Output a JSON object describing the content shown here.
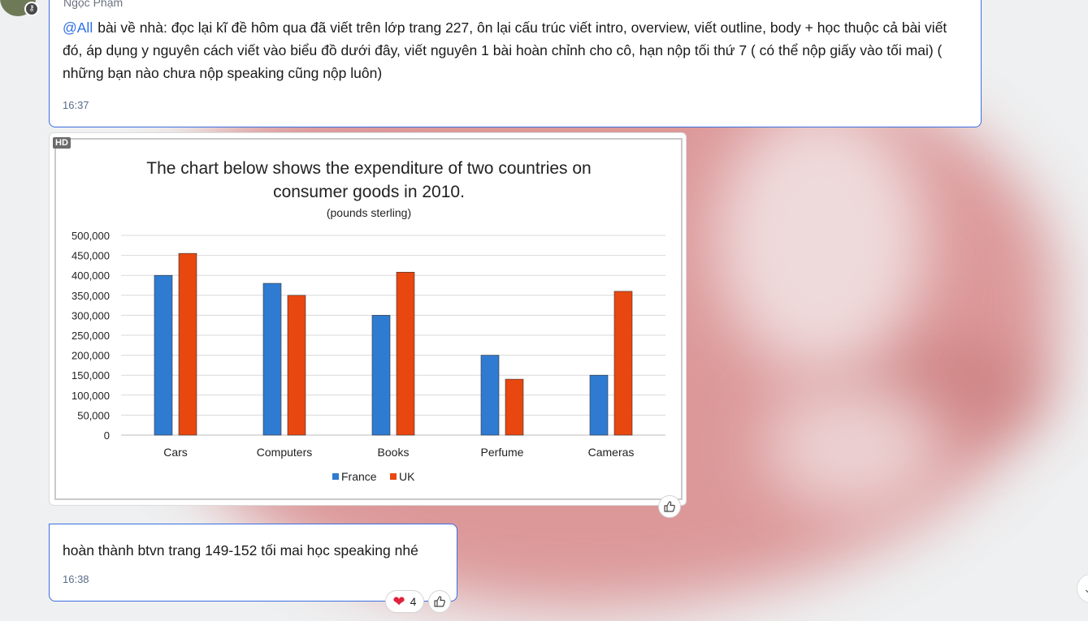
{
  "message1": {
    "sender": "Ngọc Phạm",
    "mention": "@All",
    "text": "bài về nhà: đọc lại kĩ đề hôm qua đã viết trên lớp trang 227, ôn lại cấu trúc viết intro, overview, viết outline, body + học thuộc cả bài viết đó, áp dụng y nguyên cách viết vào biểu đồ dưới đây, viết nguyên 1 bài hoàn chỉnh cho cô, hạn nộp tối thứ 7 ( có thể nộp giấy vào tối mai) ( những bạn nào chưa nộp speaking cũng nộp luôn)",
    "time": "16:37"
  },
  "image": {
    "badge": "HD"
  },
  "chart_data": {
    "type": "bar",
    "title_line1": "The chart below shows the expenditure of two countries on",
    "title_line2": "consumer goods in 2010.",
    "subtitle": "(pounds sterling)",
    "categories": [
      "Cars",
      "Computers",
      "Books",
      "Perfume",
      "Cameras"
    ],
    "series": [
      {
        "name": "France",
        "color": "#2f7bd1",
        "values": [
          400000,
          380000,
          300000,
          200000,
          150000
        ]
      },
      {
        "name": "UK",
        "color": "#e8470f",
        "values": [
          455000,
          350000,
          408000,
          140000,
          360000
        ]
      }
    ],
    "ylim": [
      0,
      500000
    ],
    "yticks": [
      "500,000",
      "450,000",
      "400,000",
      "350,000",
      "300,000",
      "250,000",
      "200,000",
      "150,000",
      "100,000",
      "50,000",
      "0"
    ],
    "legend_position": "bottom",
    "grid": true
  },
  "message2": {
    "text": "hoàn thành btvn trang 149-152 tối mai học speaking nhé",
    "time": "16:38",
    "reaction_count": "4"
  },
  "icons": {
    "like": "thumbs-up-icon",
    "heart": "heart-icon",
    "scroll": "chevron-down-icon"
  }
}
